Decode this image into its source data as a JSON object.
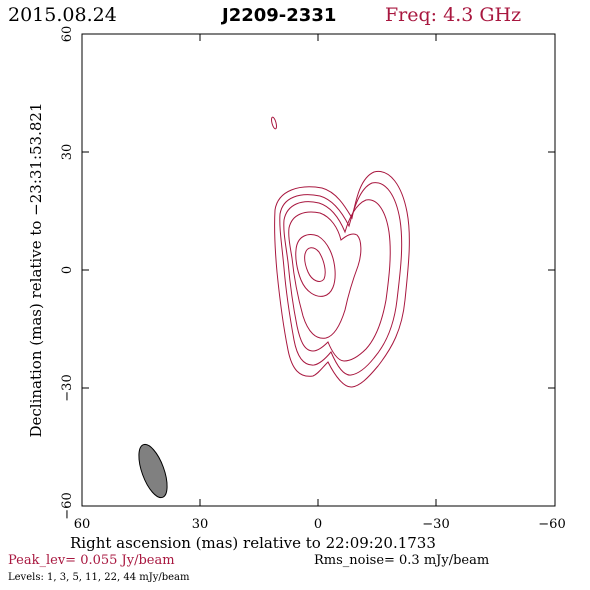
{
  "header": {
    "date": "2015.08.24",
    "source": "J2209-2331",
    "freq": "Freq: 4.3 GHz"
  },
  "axes": {
    "xlabel": "Right ascension (mas) relative to 22:09:20.1733",
    "ylabel": "Declination (mas) relative to −23:31:53.821",
    "x_ticks": [
      "60",
      "30",
      "0",
      "−30",
      "−60"
    ],
    "y_ticks": [
      "60",
      "30",
      "0",
      "−30",
      "−60"
    ]
  },
  "footer": {
    "peak": "Peak_lev=  0.055 Jy/beam",
    "rms": "Rms_noise=   0.3  mJy/beam",
    "levels": "Levels:    1,    3,    5,   11,   22,   44 mJy/beam"
  },
  "colors": {
    "contour": "#a8173f",
    "beam_fill": "#808080"
  },
  "chart_data": {
    "type": "contour",
    "xlim": [
      60,
      -60
    ],
    "ylim": [
      -60,
      60
    ],
    "contour_levels_mJy": [
      1,
      3,
      5,
      11,
      22,
      44
    ],
    "beam": {
      "x": 42,
      "y": -51,
      "major_mas": 14,
      "minor_mas": 6,
      "pa_deg": -20
    }
  }
}
